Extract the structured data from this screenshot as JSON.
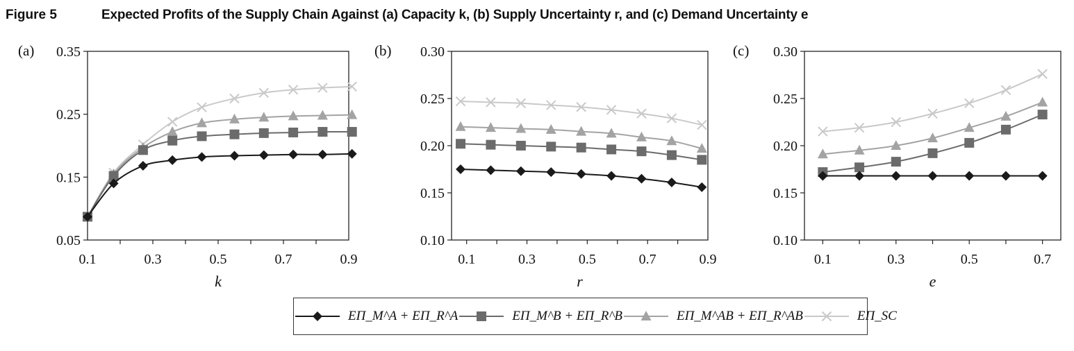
{
  "figure": {
    "number": "Figure 5",
    "caption": "Expected Profits of the Supply Chain Against (a) Capacity k, (b) Supply Uncertainty r, and (c) Demand Uncertainty e"
  },
  "colors": {
    "A": "#1a1a1a",
    "B": "#6b6b6b",
    "AB": "#a3a3a3",
    "SC": "#c9c9c9"
  },
  "legend": [
    {
      "key": "A",
      "marker": "diamond",
      "label": "EΠ_M^A + EΠ_R^A"
    },
    {
      "key": "B",
      "marker": "square",
      "label": "EΠ_M^B + EΠ_R^B"
    },
    {
      "key": "AB",
      "marker": "triangle",
      "label": "EΠ_M^AB + EΠ_R^AB"
    },
    {
      "key": "SC",
      "marker": "x",
      "label": "EΠ_SC"
    }
  ],
  "chart_data": [
    {
      "type": "line",
      "panel_label": "(a)",
      "xlabel": "k",
      "ylabel": "",
      "xlim": [
        0.1,
        0.9
      ],
      "ylim": [
        0.05,
        0.35
      ],
      "xticks": [
        "0.1",
        "0.3",
        "0.5",
        "0.7",
        "0.9"
      ],
      "yticks": [
        "0.05",
        "0.15",
        "0.25",
        "0.35"
      ],
      "x": [
        0.1,
        0.18,
        0.27,
        0.36,
        0.45,
        0.55,
        0.64,
        0.73,
        0.82,
        0.91
      ],
      "series": [
        {
          "key": "A",
          "values": [
            0.087,
            0.14,
            0.168,
            0.177,
            0.182,
            0.184,
            0.185,
            0.186,
            0.186,
            0.187
          ]
        },
        {
          "key": "B",
          "values": [
            0.087,
            0.152,
            0.193,
            0.208,
            0.215,
            0.218,
            0.22,
            0.221,
            0.222,
            0.222
          ]
        },
        {
          "key": "AB",
          "values": [
            0.087,
            0.155,
            0.197,
            0.222,
            0.236,
            0.242,
            0.245,
            0.247,
            0.248,
            0.249
          ]
        },
        {
          "key": "SC",
          "values": [
            0.087,
            0.157,
            0.202,
            0.238,
            0.261,
            0.275,
            0.284,
            0.289,
            0.292,
            0.294
          ]
        }
      ]
    },
    {
      "type": "line",
      "panel_label": "(b)",
      "xlabel": "r",
      "ylabel": "",
      "xlim": [
        0.05,
        0.9
      ],
      "ylim": [
        0.1,
        0.3
      ],
      "xticks": [
        "0.1",
        "0.3",
        "0.5",
        "0.7",
        "0.9"
      ],
      "yticks": [
        "0.10",
        "0.15",
        "0.20",
        "0.25",
        "0.30"
      ],
      "x": [
        0.08,
        0.18,
        0.28,
        0.38,
        0.48,
        0.58,
        0.68,
        0.78,
        0.88
      ],
      "series": [
        {
          "key": "A",
          "values": [
            0.175,
            0.174,
            0.173,
            0.172,
            0.17,
            0.168,
            0.165,
            0.161,
            0.156
          ]
        },
        {
          "key": "B",
          "values": [
            0.202,
            0.201,
            0.2,
            0.199,
            0.198,
            0.196,
            0.194,
            0.19,
            0.185
          ]
        },
        {
          "key": "AB",
          "values": [
            0.22,
            0.219,
            0.218,
            0.217,
            0.215,
            0.213,
            0.209,
            0.205,
            0.197
          ]
        },
        {
          "key": "SC",
          "values": [
            0.247,
            0.246,
            0.245,
            0.243,
            0.241,
            0.238,
            0.234,
            0.229,
            0.222
          ]
        }
      ]
    },
    {
      "type": "line",
      "panel_label": "(c)",
      "xlabel": "e",
      "ylabel": "",
      "xlim": [
        0.05,
        0.75
      ],
      "ylim": [
        0.1,
        0.3
      ],
      "xticks": [
        "0.1",
        "0.3",
        "0.5",
        "0.7"
      ],
      "yticks": [
        "0.10",
        "0.15",
        "0.20",
        "0.25",
        "0.30"
      ],
      "x": [
        0.1,
        0.2,
        0.3,
        0.4,
        0.5,
        0.6,
        0.7
      ],
      "series": [
        {
          "key": "A",
          "values": [
            0.168,
            0.168,
            0.168,
            0.168,
            0.168,
            0.168,
            0.168
          ]
        },
        {
          "key": "B",
          "values": [
            0.172,
            0.177,
            0.183,
            0.192,
            0.203,
            0.217,
            0.233
          ]
        },
        {
          "key": "AB",
          "values": [
            0.191,
            0.195,
            0.2,
            0.208,
            0.219,
            0.231,
            0.246
          ]
        },
        {
          "key": "SC",
          "values": [
            0.215,
            0.219,
            0.225,
            0.234,
            0.245,
            0.259,
            0.276
          ]
        }
      ]
    }
  ]
}
